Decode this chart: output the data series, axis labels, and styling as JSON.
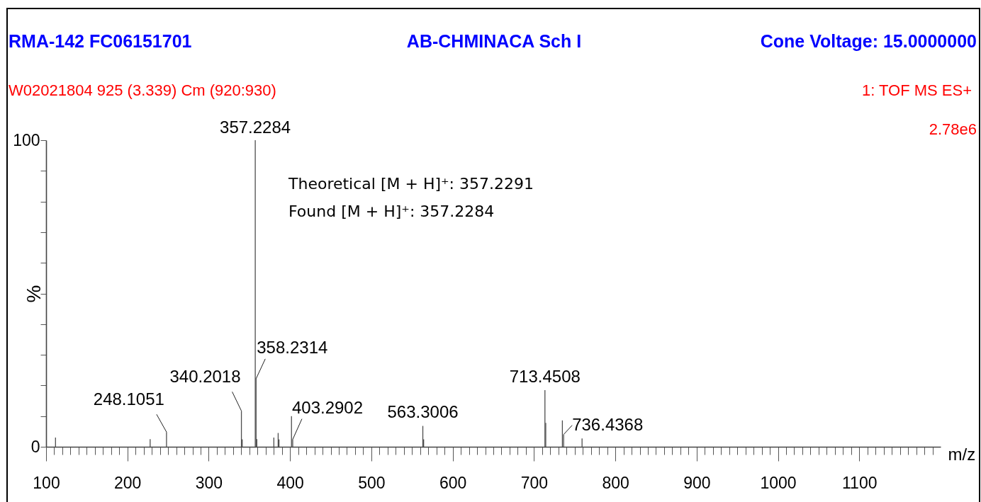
{
  "chart_data": {
    "type": "bar",
    "title": "AB-CHMINACA Sch I",
    "subtitle": "W02021804 925 (3.339) Cm (920:930)",
    "xlabel": "m/z",
    "ylabel": "%",
    "x": [
      111.6,
      228,
      248.1051,
      340.2018,
      341.2,
      357.2284,
      358.2314,
      359.2,
      380.1,
      385.4,
      386.4,
      401.8,
      403.2902,
      563.3006,
      564.3,
      713.4508,
      714.45,
      734.9,
      736.4368,
      759.1
    ],
    "values": [
      3.0,
      2.5,
      4.8,
      11.7,
      2.4,
      100,
      22.2,
      2.5,
      3.0,
      4.5,
      2.4,
      10.0,
      2.4,
      6.8,
      2.4,
      18.5,
      7.8,
      8.6,
      4.0,
      2.7
    ],
    "color": "#4d4d4d",
    "xlim": [
      100,
      1200
    ],
    "ylim": [
      0,
      100
    ],
    "xticks": [
      100,
      {
        "value": 110,
        "label": null
      },
      {
        "value": 120,
        "label": null
      },
      {
        "value": 130,
        "label": null
      },
      {
        "value": 140,
        "label": null
      },
      {
        "value": 150,
        "label": null
      },
      {
        "value": 160,
        "label": null
      },
      {
        "value": 170,
        "label": null
      },
      {
        "value": 180,
        "label": null
      },
      {
        "value": 190,
        "label": null
      },
      200,
      {
        "value": 210,
        "label": null
      },
      {
        "value": 220,
        "label": null
      },
      {
        "value": 230,
        "label": null
      },
      {
        "value": 240,
        "label": null
      },
      {
        "value": 250,
        "label": null
      },
      {
        "value": 260,
        "label": null
      },
      {
        "value": 270,
        "label": null
      },
      {
        "value": 280,
        "label": null
      },
      {
        "value": 290,
        "label": null
      },
      300,
      {
        "value": 310,
        "label": null
      },
      {
        "value": 320,
        "label": null
      },
      {
        "value": 330,
        "label": null
      },
      {
        "value": 340,
        "label": null
      },
      {
        "value": 350,
        "label": null
      },
      {
        "value": 360,
        "label": null
      },
      {
        "value": 370,
        "label": null
      },
      {
        "value": 380,
        "label": null
      },
      {
        "value": 390,
        "label": null
      },
      400,
      {
        "value": 410,
        "label": null
      },
      {
        "value": 420,
        "label": null
      },
      {
        "value": 430,
        "label": null
      },
      {
        "value": 440,
        "label": null
      },
      {
        "value": 450,
        "label": null
      },
      {
        "value": 460,
        "label": null
      },
      {
        "value": 470,
        "label": null
      },
      {
        "value": 480,
        "label": null
      },
      {
        "value": 490,
        "label": null
      },
      500,
      {
        "value": 510,
        "label": null
      },
      {
        "value": 520,
        "label": null
      },
      {
        "value": 530,
        "label": null
      },
      {
        "value": 540,
        "label": null
      },
      {
        "value": 550,
        "label": null
      },
      {
        "value": 560,
        "label": null
      },
      {
        "value": 570,
        "label": null
      },
      {
        "value": 580,
        "label": null
      },
      {
        "value": 590,
        "label": null
      },
      600,
      {
        "value": 610,
        "label": null
      },
      {
        "value": 620,
        "label": null
      },
      {
        "value": 630,
        "label": null
      },
      {
        "value": 640,
        "label": null
      },
      {
        "value": 650,
        "label": null
      },
      {
        "value": 660,
        "label": null
      },
      {
        "value": 670,
        "label": null
      },
      {
        "value": 680,
        "label": null
      },
      {
        "value": 690,
        "label": null
      },
      700,
      {
        "value": 710,
        "label": null
      },
      {
        "value": 720,
        "label": null
      },
      {
        "value": 730,
        "label": null
      },
      {
        "value": 740,
        "label": null
      },
      {
        "value": 750,
        "label": null
      },
      {
        "value": 760,
        "label": null
      },
      {
        "value": 770,
        "label": null
      },
      {
        "value": 780,
        "label": null
      },
      {
        "value": 790,
        "label": null
      },
      800,
      {
        "value": 810,
        "label": null
      },
      {
        "value": 820,
        "label": null
      },
      {
        "value": 830,
        "label": null
      },
      {
        "value": 840,
        "label": null
      },
      {
        "value": 850,
        "label": null
      },
      {
        "value": 860,
        "label": null
      },
      {
        "value": 870,
        "label": null
      },
      {
        "value": 880,
        "label": null
      },
      {
        "value": 890,
        "label": null
      },
      900,
      {
        "value": 910,
        "label": null
      },
      {
        "value": 920,
        "label": null
      },
      {
        "value": 930,
        "label": null
      },
      {
        "value": 940,
        "label": null
      },
      {
        "value": 950,
        "label": null
      },
      {
        "value": 960,
        "label": null
      },
      {
        "value": 970,
        "label": null
      },
      {
        "value": 980,
        "label": null
      },
      {
        "value": 990,
        "label": null
      },
      1000,
      {
        "value": 1010,
        "label": null
      },
      {
        "value": 1020,
        "label": null
      },
      {
        "value": 1030,
        "label": null
      },
      {
        "value": 1040,
        "label": null
      },
      {
        "value": 1050,
        "label": null
      },
      {
        "value": 1060,
        "label": null
      },
      {
        "value": 1070,
        "label": null
      },
      {
        "value": 1080,
        "label": null
      },
      {
        "value": 1090,
        "label": null
      },
      1100,
      {
        "value": 1110,
        "label": null
      },
      {
        "value": 1120,
        "label": null
      },
      {
        "value": 1130,
        "label": null
      },
      {
        "value": 1140,
        "label": null
      },
      {
        "value": 1150,
        "label": null
      },
      {
        "value": 1160,
        "label": null
      },
      {
        "value": 1170,
        "label": null
      },
      {
        "value": 1180,
        "label": null
      },
      {
        "value": 1190,
        "label": null
      }
    ],
    "yticks": [
      0,
      {
        "value": 10,
        "label": null
      },
      {
        "value": 20,
        "label": null
      },
      {
        "value": 30,
        "label": null
      },
      {
        "value": 40,
        "label": null
      },
      {
        "value": 50,
        "label": null
      },
      {
        "value": 60,
        "label": null
      },
      {
        "value": 70,
        "label": null
      },
      {
        "value": 80,
        "label": null
      },
      {
        "value": 90,
        "label": null
      },
      100
    ],
    "annotations": [
      "RMA-142 FC06151701",
      "Cone Voltage: 15.0000000",
      "1: TOF MS ES+",
      "2.78e6",
      "Theoretical [M + H]⁺: 357.2291",
      "Found [M + H]⁺: 357.2284",
      {
        "text": "248.1051",
        "x": 248.1051,
        "y": 4.8
      },
      {
        "text": "340.2018",
        "x": 340.2018,
        "y": 11.7
      },
      {
        "text": "357.2284",
        "x": 357.2284,
        "y": 100
      },
      {
        "text": "358.2314",
        "x": 358.2314,
        "y": 22.2
      },
      {
        "text": "403.2902",
        "x": 403.2902,
        "y": 2.4
      },
      {
        "text": "563.3006",
        "x": 563.3006,
        "y": 6.8
      },
      {
        "text": "713.4508",
        "x": 713.4508,
        "y": 18.5
      },
      {
        "text": "736.4368",
        "x": 736.4368,
        "y": 4.0
      }
    ]
  }
}
